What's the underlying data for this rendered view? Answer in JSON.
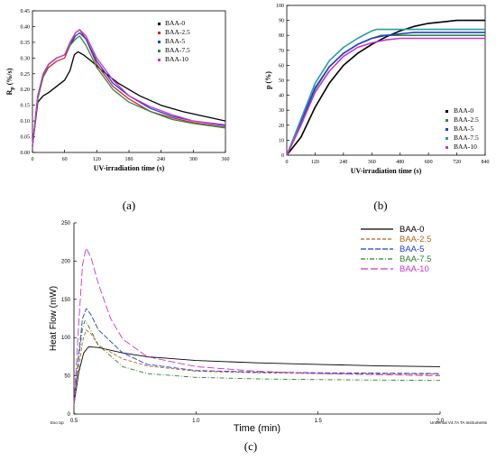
{
  "chart_data": [
    {
      "id": "a",
      "type": "line",
      "panel_label": "(a)",
      "xlabel": "UV-irradiation time (s)",
      "ylabel_main": "R",
      "ylabel_sub": "p",
      "ylabel_unit": "(%/s)",
      "xlim": [
        0,
        360
      ],
      "ylim": [
        0,
        0.45
      ],
      "xticks": [
        "0",
        "60",
        "120",
        "180",
        "240",
        "300",
        "360"
      ],
      "yticks": [
        "0.00",
        "0.05",
        "0.10",
        "0.15",
        "0.20",
        "0.25",
        "0.30",
        "0.35",
        "0.40",
        "0.45"
      ],
      "legend_position": "top-right",
      "series": [
        {
          "name": "BAA-0",
          "color": "#000000",
          "points": [
            [
              0,
              0.02
            ],
            [
              10,
              0.16
            ],
            [
              20,
              0.18
            ],
            [
              30,
              0.19
            ],
            [
              45,
              0.21
            ],
            [
              60,
              0.23
            ],
            [
              70,
              0.26
            ],
            [
              78,
              0.31
            ],
            [
              85,
              0.32
            ],
            [
              95,
              0.31
            ],
            [
              110,
              0.29
            ],
            [
              130,
              0.26
            ],
            [
              160,
              0.22
            ],
            [
              200,
              0.18
            ],
            [
              240,
              0.15
            ],
            [
              280,
              0.13
            ],
            [
              320,
              0.115
            ],
            [
              360,
              0.1
            ]
          ]
        },
        {
          "name": "BAA-2.5",
          "color": "#d62728",
          "points": [
            [
              0,
              0.02
            ],
            [
              10,
              0.18
            ],
            [
              20,
              0.24
            ],
            [
              30,
              0.27
            ],
            [
              45,
              0.29
            ],
            [
              60,
              0.3
            ],
            [
              70,
              0.34
            ],
            [
              80,
              0.38
            ],
            [
              88,
              0.39
            ],
            [
              100,
              0.36
            ],
            [
              120,
              0.28
            ],
            [
              150,
              0.21
            ],
            [
              180,
              0.17
            ],
            [
              220,
              0.13
            ],
            [
              260,
              0.11
            ],
            [
              300,
              0.095
            ],
            [
              360,
              0.08
            ]
          ]
        },
        {
          "name": "BAA-5",
          "color": "#1f3fd0",
          "points": [
            [
              0,
              0.02
            ],
            [
              10,
              0.18
            ],
            [
              20,
              0.25
            ],
            [
              30,
              0.28
            ],
            [
              45,
              0.3
            ],
            [
              60,
              0.31
            ],
            [
              70,
              0.34
            ],
            [
              80,
              0.37
            ],
            [
              88,
              0.38
            ],
            [
              100,
              0.36
            ],
            [
              120,
              0.29
            ],
            [
              150,
              0.22
            ],
            [
              180,
              0.18
            ],
            [
              220,
              0.14
            ],
            [
              260,
              0.115
            ],
            [
              300,
              0.1
            ],
            [
              360,
              0.085
            ]
          ]
        },
        {
          "name": "BAA-7.5",
          "color": "#2e8b3c",
          "points": [
            [
              0,
              0.02
            ],
            [
              10,
              0.17
            ],
            [
              20,
              0.24
            ],
            [
              30,
              0.28
            ],
            [
              45,
              0.3
            ],
            [
              60,
              0.31
            ],
            [
              70,
              0.34
            ],
            [
              80,
              0.36
            ],
            [
              88,
              0.37
            ],
            [
              100,
              0.34
            ],
            [
              120,
              0.27
            ],
            [
              150,
              0.2
            ],
            [
              180,
              0.16
            ],
            [
              220,
              0.13
            ],
            [
              260,
              0.105
            ],
            [
              300,
              0.092
            ],
            [
              360,
              0.078
            ]
          ]
        },
        {
          "name": "BAA-10",
          "color": "#cc33cc",
          "points": [
            [
              0,
              0.02
            ],
            [
              10,
              0.18
            ],
            [
              20,
              0.25
            ],
            [
              30,
              0.28
            ],
            [
              45,
              0.3
            ],
            [
              60,
              0.31
            ],
            [
              70,
              0.35
            ],
            [
              80,
              0.38
            ],
            [
              88,
              0.39
            ],
            [
              100,
              0.37
            ],
            [
              120,
              0.3
            ],
            [
              150,
              0.23
            ],
            [
              180,
              0.18
            ],
            [
              220,
              0.145
            ],
            [
              260,
              0.12
            ],
            [
              300,
              0.1
            ],
            [
              360,
              0.088
            ]
          ]
        }
      ]
    },
    {
      "id": "b",
      "type": "line",
      "panel_label": "(b)",
      "xlabel": "UV-irradiation time (s)",
      "ylabel": "p (%)",
      "xlim": [
        0,
        840
      ],
      "ylim": [
        0,
        100
      ],
      "xticks": [
        "0",
        "120",
        "240",
        "360",
        "480",
        "600",
        "720",
        "840"
      ],
      "yticks": [
        "0",
        "10",
        "20",
        "30",
        "40",
        "50",
        "60",
        "70",
        "80",
        "90",
        "100"
      ],
      "legend_position": "center-right",
      "series": [
        {
          "name": "BAA-0",
          "color": "#000000",
          "points": [
            [
              0,
              0
            ],
            [
              60,
              12
            ],
            [
              120,
              32
            ],
            [
              180,
              48
            ],
            [
              240,
              60
            ],
            [
              300,
              68
            ],
            [
              360,
              74
            ],
            [
              420,
              79
            ],
            [
              480,
              83
            ],
            [
              540,
              86
            ],
            [
              600,
              88
            ],
            [
              660,
              89
            ],
            [
              720,
              90
            ],
            [
              780,
              90
            ],
            [
              840,
              90
            ]
          ]
        },
        {
          "name": "BAA-2.5",
          "color": "#2e8b3c",
          "points": [
            [
              0,
              0
            ],
            [
              60,
              20
            ],
            [
              120,
              44
            ],
            [
              180,
              59
            ],
            [
              240,
              68
            ],
            [
              300,
              74
            ],
            [
              360,
              78
            ],
            [
              400,
              80
            ],
            [
              480,
              80
            ],
            [
              600,
              80
            ],
            [
              720,
              80
            ],
            [
              840,
              80
            ]
          ]
        },
        {
          "name": "BAA-5",
          "color": "#1f3fd0",
          "points": [
            [
              0,
              0
            ],
            [
              60,
              22
            ],
            [
              120,
              45
            ],
            [
              180,
              59
            ],
            [
              240,
              68
            ],
            [
              300,
              74
            ],
            [
              360,
              78
            ],
            [
              420,
              80
            ],
            [
              480,
              81
            ],
            [
              540,
              82
            ],
            [
              600,
              82
            ],
            [
              720,
              82
            ],
            [
              840,
              82
            ]
          ]
        },
        {
          "name": "BAA-7.5",
          "color": "#2a9d9d",
          "points": [
            [
              0,
              0
            ],
            [
              60,
              24
            ],
            [
              120,
              48
            ],
            [
              180,
              63
            ],
            [
              240,
              72
            ],
            [
              300,
              78
            ],
            [
              360,
              83
            ],
            [
              380,
              84
            ],
            [
              480,
              84
            ],
            [
              600,
              84
            ],
            [
              720,
              84
            ],
            [
              840,
              84
            ]
          ]
        },
        {
          "name": "BAA-10",
          "color": "#cc33cc",
          "points": [
            [
              0,
              0
            ],
            [
              60,
              20
            ],
            [
              120,
              42
            ],
            [
              180,
              56
            ],
            [
              240,
              66
            ],
            [
              300,
              72
            ],
            [
              360,
              75
            ],
            [
              420,
              77
            ],
            [
              480,
              78
            ],
            [
              600,
              78
            ],
            [
              720,
              78
            ],
            [
              840,
              78
            ]
          ]
        }
      ]
    },
    {
      "id": "c",
      "type": "line",
      "panel_label": "(c)",
      "xlabel": "Time (min)",
      "ylabel": "Heat Flow (mW)",
      "footer_left": "Exo Up",
      "footer_right": "Universal V4.7A TA Instruments",
      "xlim": [
        0.5,
        2.0
      ],
      "ylim": [
        0,
        250
      ],
      "xticks": [
        "0.5",
        "1.0",
        "1.5",
        "2.0"
      ],
      "yticks": [
        "0",
        "50",
        "100",
        "150",
        "200",
        "250"
      ],
      "legend_position": "top-right",
      "series": [
        {
          "name": "BAA-0",
          "color": "#000000",
          "dash": "",
          "points": [
            [
              0.5,
              12
            ],
            [
              0.52,
              55
            ],
            [
              0.54,
              80
            ],
            [
              0.56,
              88
            ],
            [
              0.6,
              87
            ],
            [
              0.7,
              80
            ],
            [
              0.8,
              75
            ],
            [
              1.0,
              70
            ],
            [
              1.25,
              67
            ],
            [
              1.5,
              65
            ],
            [
              1.75,
              63
            ],
            [
              2.0,
              62
            ]
          ]
        },
        {
          "name": "BAA-2.5",
          "color": "#b5651d",
          "dash": "4 2",
          "points": [
            [
              0.5,
              12
            ],
            [
              0.52,
              60
            ],
            [
              0.535,
              95
            ],
            [
              0.55,
              110
            ],
            [
              0.57,
              105
            ],
            [
              0.6,
              90
            ],
            [
              0.7,
              72
            ],
            [
              0.8,
              63
            ],
            [
              1.0,
              56
            ],
            [
              1.25,
              54
            ],
            [
              1.5,
              53
            ],
            [
              2.0,
              52
            ]
          ]
        },
        {
          "name": "BAA-5",
          "color": "#1f3fd0",
          "dash": "6 2",
          "points": [
            [
              0.5,
              12
            ],
            [
              0.52,
              80
            ],
            [
              0.535,
              125
            ],
            [
              0.55,
              138
            ],
            [
              0.57,
              130
            ],
            [
              0.6,
              110
            ],
            [
              0.7,
              80
            ],
            [
              0.8,
              65
            ],
            [
              1.0,
              57
            ],
            [
              1.25,
              55
            ],
            [
              1.5,
              54
            ],
            [
              2.0,
              53
            ]
          ]
        },
        {
          "name": "BAA-7.5",
          "color": "#2e7d32",
          "dash": "5 2 1 2",
          "points": [
            [
              0.5,
              12
            ],
            [
              0.52,
              75
            ],
            [
              0.535,
              112
            ],
            [
              0.545,
              122
            ],
            [
              0.56,
              115
            ],
            [
              0.6,
              90
            ],
            [
              0.7,
              62
            ],
            [
              0.8,
              53
            ],
            [
              1.0,
              48
            ],
            [
              1.25,
              46
            ],
            [
              1.5,
              45
            ],
            [
              2.0,
              44
            ]
          ]
        },
        {
          "name": "BAA-10",
          "color": "#cc33cc",
          "dash": "8 3",
          "points": [
            [
              0.5,
              12
            ],
            [
              0.52,
              120
            ],
            [
              0.535,
              195
            ],
            [
              0.55,
              217
            ],
            [
              0.57,
              205
            ],
            [
              0.6,
              170
            ],
            [
              0.65,
              125
            ],
            [
              0.7,
              98
            ],
            [
              0.8,
              75
            ],
            [
              1.0,
              62
            ],
            [
              1.25,
              56
            ],
            [
              1.5,
              53
            ],
            [
              2.0,
              50
            ]
          ]
        }
      ]
    }
  ]
}
